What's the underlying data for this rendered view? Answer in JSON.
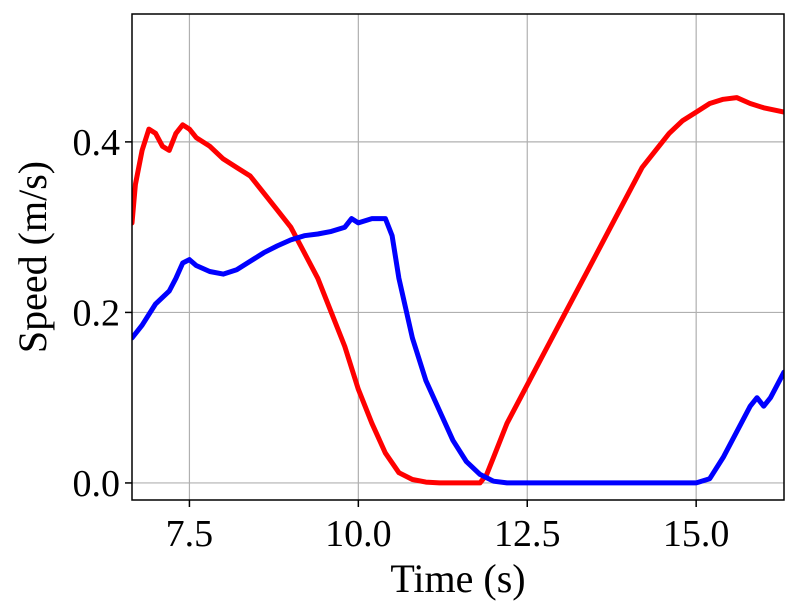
{
  "chart_data": {
    "type": "line",
    "title": "",
    "xlabel": "Time (s)",
    "ylabel": "Speed (m/s)",
    "xlim": [
      6.65,
      16.3
    ],
    "ylim": [
      -0.02,
      0.55
    ],
    "grid": true,
    "legend": "none",
    "x_ticks": [
      7.5,
      10.0,
      12.5,
      15.0
    ],
    "x_tick_labels": [
      "7.5",
      "10.0",
      "12.5",
      "15.0"
    ],
    "y_ticks": [
      0.0,
      0.2,
      0.4
    ],
    "y_tick_labels": [
      "0.0",
      "0.2",
      "0.4"
    ],
    "series": [
      {
        "color": "#ff0000",
        "x": [
          6.65,
          6.7,
          6.8,
          6.9,
          7.0,
          7.1,
          7.2,
          7.3,
          7.4,
          7.5,
          7.6,
          7.8,
          8.0,
          8.2,
          8.4,
          8.6,
          8.8,
          9.0,
          9.2,
          9.4,
          9.6,
          9.8,
          10.0,
          10.2,
          10.4,
          10.6,
          10.8,
          11.0,
          11.2,
          11.5,
          11.8,
          11.9,
          12.0,
          12.2,
          12.4,
          12.6,
          12.8,
          13.0,
          13.2,
          13.4,
          13.6,
          13.8,
          14.0,
          14.2,
          14.4,
          14.6,
          14.8,
          15.0,
          15.2,
          15.4,
          15.6,
          15.8,
          16.0,
          16.3
        ],
        "values": [
          0.305,
          0.35,
          0.39,
          0.415,
          0.41,
          0.395,
          0.39,
          0.41,
          0.42,
          0.415,
          0.405,
          0.395,
          0.38,
          0.37,
          0.36,
          0.34,
          0.32,
          0.3,
          0.27,
          0.24,
          0.2,
          0.16,
          0.11,
          0.07,
          0.035,
          0.012,
          0.004,
          0.001,
          0.0,
          0.0,
          0.0,
          0.01,
          0.03,
          0.07,
          0.1,
          0.13,
          0.16,
          0.19,
          0.22,
          0.25,
          0.28,
          0.31,
          0.34,
          0.37,
          0.39,
          0.41,
          0.425,
          0.435,
          0.445,
          0.45,
          0.452,
          0.445,
          0.44,
          0.435
        ]
      },
      {
        "color": "#0000ff",
        "x": [
          6.65,
          6.8,
          7.0,
          7.2,
          7.3,
          7.4,
          7.5,
          7.6,
          7.8,
          8.0,
          8.2,
          8.4,
          8.6,
          8.8,
          9.0,
          9.2,
          9.4,
          9.6,
          9.8,
          9.9,
          10.0,
          10.2,
          10.4,
          10.5,
          10.6,
          10.8,
          11.0,
          11.2,
          11.4,
          11.6,
          11.8,
          12.0,
          12.2,
          12.5,
          13.0,
          13.5,
          14.0,
          14.5,
          15.0,
          15.2,
          15.4,
          15.6,
          15.8,
          15.9,
          16.0,
          16.1,
          16.3
        ],
        "values": [
          0.17,
          0.185,
          0.21,
          0.225,
          0.24,
          0.258,
          0.262,
          0.255,
          0.248,
          0.245,
          0.25,
          0.26,
          0.27,
          0.278,
          0.285,
          0.29,
          0.292,
          0.295,
          0.3,
          0.31,
          0.305,
          0.31,
          0.31,
          0.29,
          0.24,
          0.17,
          0.12,
          0.085,
          0.05,
          0.025,
          0.01,
          0.002,
          0.0,
          0.0,
          0.0,
          0.0,
          0.0,
          0.0,
          0.0,
          0.005,
          0.03,
          0.06,
          0.09,
          0.1,
          0.09,
          0.1,
          0.13
        ]
      }
    ]
  }
}
